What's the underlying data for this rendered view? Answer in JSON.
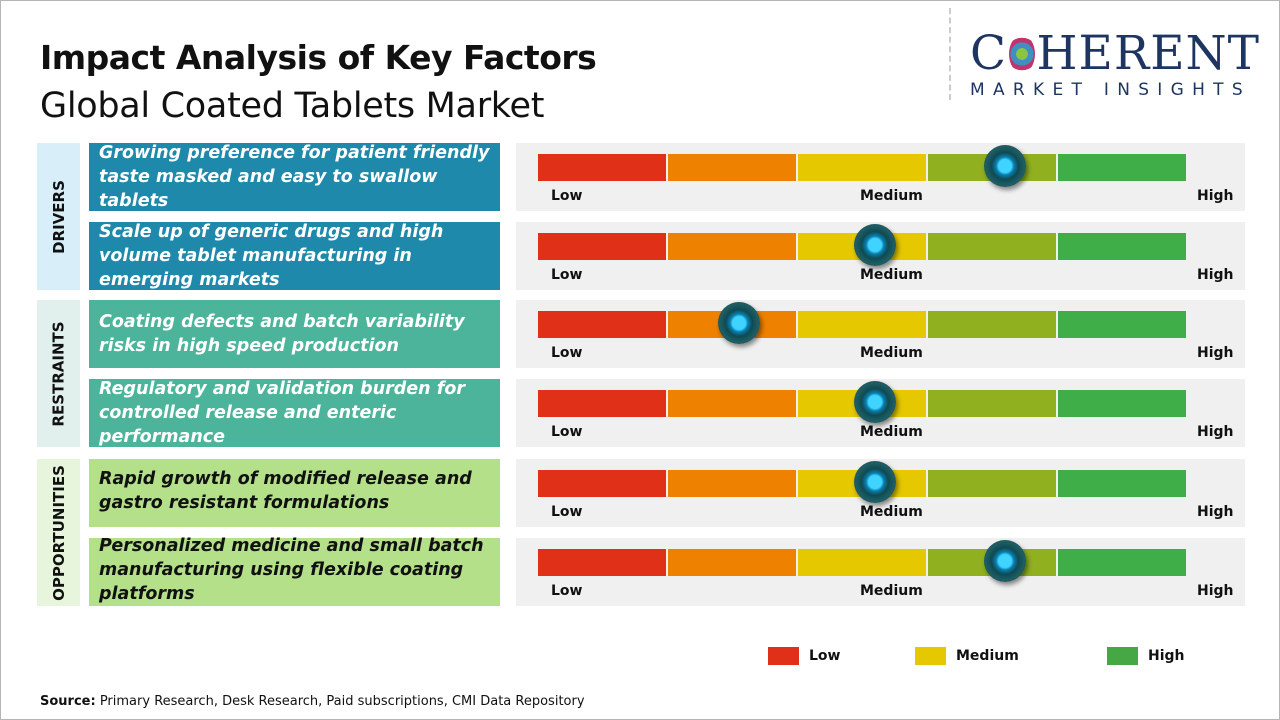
{
  "header": {
    "title": "Impact Analysis of Key Factors",
    "subtitle": "Global Coated Tablets Market"
  },
  "logo": {
    "main_left": "C",
    "main_right": "HERENT",
    "sub": "MARKET INSIGHTS"
  },
  "scale_labels": {
    "low": "Low",
    "medium": "Medium",
    "high": "High"
  },
  "bar_colors": [
    "#e03018",
    "#ee8100",
    "#e5c800",
    "#90b020",
    "#3fae49"
  ],
  "categories": [
    {
      "label": "DRIVERS",
      "label_bg": "#d8eef8",
      "box_color": "#1e89aa",
      "factors": [
        {
          "text": "Growing preference for patient friendly taste masked and easy to swallow tablets",
          "impact": 0.72
        },
        {
          "text": "Scale up of generic drugs and high volume tablet manufacturing in emerging markets",
          "impact": 0.52
        }
      ]
    },
    {
      "label": "RESTRAINTS",
      "label_bg": "#e2f0ed",
      "box_color": "#4cb49a",
      "factors": [
        {
          "text": "Coating defects and batch variability risks in high speed production",
          "impact": 0.31
        },
        {
          "text": "Regulatory and validation burden for controlled release and enteric performance",
          "impact": 0.52
        }
      ]
    },
    {
      "label": "OPPORTUNITIES",
      "label_bg": "#e7f5dd",
      "box_color": "#b4e08a",
      "factors": [
        {
          "text": "Rapid growth of modified release and gastro resistant formulations",
          "impact": 0.52
        },
        {
          "text": "Personalized medicine and small batch manufacturing using flexible coating platforms",
          "impact": 0.72
        }
      ]
    }
  ],
  "legend": [
    {
      "label": "Low",
      "color": "#e03018"
    },
    {
      "label": "Medium",
      "color": "#e5c800"
    },
    {
      "label": "High",
      "color": "#45a845"
    }
  ],
  "source": {
    "prefix": "Source:",
    "text": " Primary Research, Desk Research, Paid subscriptions, CMI Data Repository"
  }
}
